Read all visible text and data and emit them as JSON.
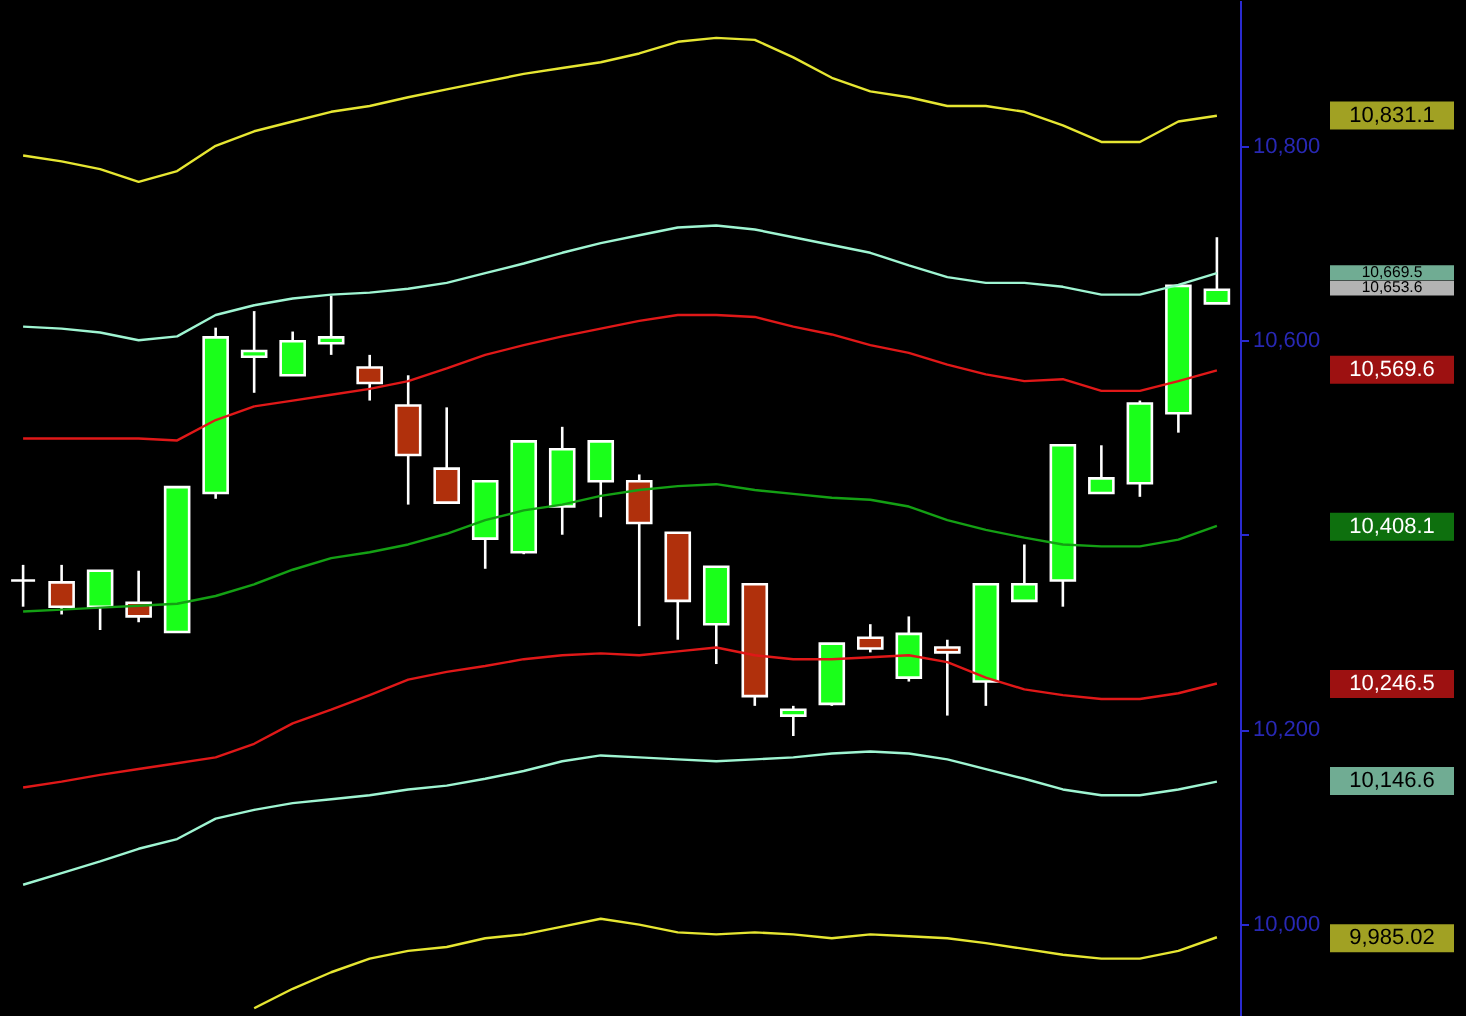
{
  "chart_data": {
    "type": "candlestick",
    "categories": [
      null,
      null,
      null,
      null,
      null,
      null,
      null,
      null,
      null,
      null,
      null,
      null,
      null,
      null,
      null,
      null,
      null,
      null,
      null,
      null,
      null,
      null,
      null,
      null,
      null,
      null,
      null,
      null,
      null,
      null,
      null,
      null
    ],
    "ohlc": [
      [
        10353,
        10369,
        10326,
        10353
      ],
      [
        10351,
        10369,
        10318,
        10326
      ],
      [
        10326,
        10363,
        10302,
        10363
      ],
      [
        10330,
        10363,
        10310,
        10316
      ],
      [
        10300,
        10449,
        10300,
        10449
      ],
      [
        10443,
        10613,
        10437,
        10603
      ],
      [
        10583,
        10630,
        10546,
        10589
      ],
      [
        10564,
        10609,
        10564,
        10599
      ],
      [
        10597,
        10646,
        10585,
        10603
      ],
      [
        10572,
        10585,
        10538,
        10556
      ],
      [
        10533,
        10564,
        10431,
        10482
      ],
      [
        10468,
        10531,
        10433,
        10433
      ],
      [
        10396,
        10455,
        10365,
        10455
      ],
      [
        10382,
        10496,
        10380,
        10496
      ],
      [
        10429,
        10511,
        10400,
        10488
      ],
      [
        10455,
        10496,
        10418,
        10496
      ],
      [
        10455,
        10462,
        10306,
        10412
      ],
      [
        10402,
        10402,
        10292,
        10332
      ],
      [
        10308,
        10367,
        10267,
        10367
      ],
      [
        10349,
        10349,
        10224,
        10234
      ],
      [
        10214,
        10224,
        10193,
        10220
      ],
      [
        10226,
        10288,
        10224,
        10288
      ],
      [
        10294,
        10308,
        10279,
        10283
      ],
      [
        10253,
        10316,
        10249,
        10298
      ],
      [
        10284,
        10292,
        10214,
        10279
      ],
      [
        10249,
        10349,
        10224,
        10349
      ],
      [
        10332,
        10390,
        10332,
        10349
      ],
      [
        10353,
        10492,
        10326,
        10492
      ],
      [
        10443,
        10492,
        10443,
        10458
      ],
      [
        10453,
        10538,
        10439,
        10535
      ],
      [
        10525,
        10656,
        10505,
        10656
      ],
      [
        10638,
        10706,
        10638,
        10652
      ]
    ],
    "colors": [
      "#ffffff",
      "#b0300c",
      "#1aff1a",
      "#b0300c",
      "#1aff1a",
      "#1aff1a",
      "#1aff1a",
      "#1aff1a",
      "#1aff1a",
      "#b0300c",
      "#b0300c",
      "#b0300c",
      "#1aff1a",
      "#1aff1a",
      "#1aff1a",
      "#1aff1a",
      "#b0300c",
      "#b0300c",
      "#1aff1a",
      "#b0300c",
      "#1aff1a",
      "#1aff1a",
      "#b0300c",
      "#1aff1a",
      "#b0300c",
      "#1aff1a",
      "#1aff1a",
      "#1aff1a",
      "#1aff1a",
      "#1aff1a",
      "#1aff1a",
      "#1aff1a"
    ],
    "series": [
      {
        "type": "line",
        "color": "#e6e632",
        "values": [
          10790,
          10784,
          10776,
          10763,
          10774,
          10800,
          10815,
          10825,
          10835,
          10841,
          10850,
          10858,
          10866,
          10874,
          10880,
          10886,
          10895,
          10907,
          10911,
          10909,
          10891,
          10870,
          10856,
          10850,
          10841,
          10841,
          10835,
          10821,
          10804,
          10804,
          10825,
          10831
        ]
      },
      {
        "type": "line",
        "color": "#9ff5d2",
        "values": [
          10614,
          10612,
          10608,
          10600,
          10604,
          10626,
          10636,
          10643,
          10647,
          10649,
          10653,
          10659,
          10669,
          10679,
          10690,
          10700,
          10708,
          10716,
          10718,
          10714,
          10706,
          10698,
          10690,
          10677,
          10665,
          10659,
          10659,
          10655,
          10647,
          10647,
          10657,
          10669
        ]
      },
      {
        "type": "line",
        "color": "#e01818",
        "values": [
          10499,
          10499,
          10499,
          10499,
          10497,
          10518,
          10532,
          10538,
          10544,
          10550,
          10558,
          10571,
          10585,
          10595,
          10604,
          10612,
          10620,
          10626,
          10626,
          10624,
          10614,
          10606,
          10595,
          10587,
          10575,
          10565,
          10558,
          10560,
          10548,
          10548,
          10558,
          10569
        ]
      },
      {
        "type": "line",
        "color": "#14a014",
        "values": [
          10321,
          10323,
          10325,
          10327,
          10329,
          10337,
          10349,
          10364,
          10376,
          10382,
          10390,
          10401,
          10415,
          10425,
          10431,
          10440,
          10446,
          10450,
          10452,
          10446,
          10442,
          10438,
          10436,
          10429,
          10415,
          10405,
          10397,
          10390,
          10388,
          10388,
          10395,
          10409
        ]
      },
      {
        "type": "line",
        "color": "#e01818",
        "values": [
          10140,
          10146,
          10153,
          10159,
          10165,
          10171,
          10185,
          10206,
          10220,
          10235,
          10251,
          10259,
          10265,
          10272,
          10276,
          10278,
          10276,
          10280,
          10284,
          10276,
          10272,
          10272,
          10274,
          10276,
          10269,
          10253,
          10241,
          10235,
          10231,
          10231,
          10237,
          10247
        ]
      },
      {
        "type": "line",
        "color": "#9ff5d2",
        "values": [
          10040,
          10052,
          10064,
          10077,
          10087,
          10108,
          10117,
          10124,
          10128,
          10132,
          10138,
          10142,
          10149,
          10157,
          10167,
          10173,
          10171,
          10169,
          10167,
          10169,
          10171,
          10175,
          10177,
          10175,
          10169,
          10159,
          10149,
          10138,
          10132,
          10132,
          10138,
          10146
        ]
      },
      {
        "type": "line",
        "color": "#e6e632",
        "values": [
          null,
          null,
          null,
          null,
          null,
          null,
          9913,
          9933,
          9950,
          9964,
          9972,
          9976,
          9985,
          9989,
          9997,
          10005,
          9999,
          9991,
          9989,
          9991,
          9989,
          9985,
          9989,
          9987,
          9985,
          9980,
          9974,
          9968,
          9964,
          9964,
          9972,
          9986
        ]
      }
    ],
    "ylim": [
      9905,
      10950
    ],
    "yticks": [
      {
        "value": 10000,
        "label": "10,000"
      },
      {
        "value": 10200,
        "label": "10,200"
      },
      {
        "value": 10400,
        "label": null
      },
      {
        "value": 10600,
        "label": "10,600"
      },
      {
        "value": 10800,
        "label": "10,800"
      }
    ],
    "y2lim": [
      9905,
      10950
    ],
    "y2ticks": [
      {
        "value": 10831.1,
        "label": "10,831.1"
      },
      {
        "value": 10669.5,
        "label": "10,669.5"
      },
      {
        "value": 10653.6,
        "label": "10,653.6"
      },
      {
        "value": 10569.6,
        "label": "10,569.6"
      },
      {
        "value": 10408.1,
        "label": "10,408.1"
      },
      {
        "value": 10246.5,
        "label": "10,246.5"
      },
      {
        "value": 10146.6,
        "label": "10,146.6"
      },
      {
        "value": 9985.02,
        "label": "9,985.02"
      }
    ],
    "tick_labels": "y"
  }
}
